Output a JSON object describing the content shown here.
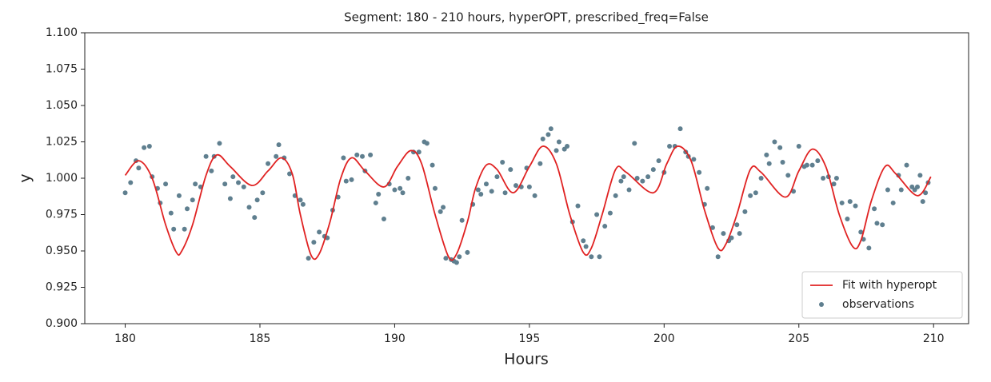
{
  "chart_data": {
    "type": "line",
    "title": "Segment: 180 - 210 hours, hyperOPT, prescribed_freq=False",
    "xlabel": "Hours",
    "ylabel": "y",
    "xlim": [
      178.5,
      211.3
    ],
    "ylim": [
      0.9,
      1.1
    ],
    "xticks": [
      180,
      185,
      190,
      195,
      200,
      205,
      210
    ],
    "yticks": [
      {
        "value": 0.9,
        "label": "0.900"
      },
      0.925,
      {
        "value": 0.95,
        "label": "0.950"
      },
      0.975,
      {
        "value": 1.0,
        "label": "1.000"
      },
      1.025,
      {
        "value": 1.05,
        "label": "1.050"
      },
      1.075,
      {
        "value": 1.1,
        "label": "1.100"
      }
    ],
    "grid": false,
    "legend": "lower right",
    "series": [
      {
        "name": "Fit with hyperopt",
        "type": "line",
        "color": "#e02222",
        "x": [
          180.0,
          180.5,
          181.0,
          181.5,
          181.9,
          182.1,
          182.5,
          183.0,
          183.4,
          183.9,
          184.7,
          185.3,
          185.8,
          186.2,
          186.5,
          186.9,
          187.2,
          187.6,
          188.0,
          188.4,
          188.9,
          189.6,
          190.1,
          190.6,
          191.0,
          191.5,
          192.0,
          192.3,
          192.7,
          193.0,
          193.4,
          193.8,
          194.4,
          195.0,
          195.5,
          196.0,
          196.5,
          197.0,
          197.3,
          197.7,
          198.2,
          198.6,
          199.6,
          200.1,
          200.5,
          201.0,
          201.5,
          202.0,
          202.3,
          202.7,
          203.2,
          203.6,
          204.5,
          205.0,
          205.5,
          206.0,
          206.5,
          207.0,
          207.3,
          207.7,
          208.2,
          208.6,
          209.4,
          209.9
        ],
        "values": [
          1.002,
          1.012,
          1.0,
          0.968,
          0.949,
          0.95,
          0.968,
          1.002,
          1.016,
          1.008,
          0.995,
          1.005,
          1.014,
          1.003,
          0.975,
          0.947,
          0.948,
          0.97,
          1.0,
          1.014,
          1.005,
          0.994,
          1.008,
          1.019,
          1.01,
          0.975,
          0.946,
          0.948,
          0.97,
          0.993,
          1.009,
          1.006,
          0.99,
          1.008,
          1.022,
          1.01,
          0.975,
          0.949,
          0.952,
          0.975,
          1.006,
          1.004,
          0.99,
          1.01,
          1.022,
          1.012,
          0.978,
          0.952,
          0.955,
          0.975,
          1.006,
          1.004,
          0.987,
          1.005,
          1.02,
          1.008,
          0.975,
          0.953,
          0.957,
          0.985,
          1.008,
          1.003,
          0.988,
          1.001
        ]
      },
      {
        "name": "observations",
        "type": "scatter",
        "color": "#5f7f8f",
        "x": [
          180.0,
          180.2,
          180.4,
          180.5,
          180.7,
          180.9,
          181.0,
          181.2,
          181.3,
          181.5,
          181.7,
          181.8,
          182.0,
          182.2,
          182.3,
          182.5,
          182.6,
          182.8,
          183.0,
          183.2,
          183.3,
          183.5,
          183.7,
          183.9,
          184.0,
          184.2,
          184.4,
          184.6,
          184.8,
          184.9,
          185.1,
          185.3,
          185.6,
          185.7,
          185.9,
          186.1,
          186.3,
          186.5,
          186.6,
          186.8,
          187.0,
          187.2,
          187.4,
          187.5,
          187.7,
          187.9,
          188.1,
          188.2,
          188.4,
          188.6,
          188.8,
          188.9,
          189.1,
          189.3,
          189.4,
          189.6,
          189.8,
          190.0,
          190.2,
          190.3,
          190.5,
          190.7,
          190.9,
          191.1,
          191.2,
          191.4,
          191.5,
          191.7,
          191.8,
          191.9,
          192.1,
          192.2,
          192.3,
          192.4,
          192.5,
          192.7,
          192.9,
          193.1,
          193.2,
          193.4,
          193.6,
          193.8,
          194.0,
          194.1,
          194.3,
          194.5,
          194.7,
          194.9,
          195.0,
          195.2,
          195.4,
          195.5,
          195.7,
          195.8,
          196.0,
          196.1,
          196.3,
          196.4,
          196.6,
          196.8,
          197.0,
          197.1,
          197.3,
          197.5,
          197.6,
          197.8,
          198.0,
          198.2,
          198.4,
          198.5,
          198.7,
          198.9,
          199.0,
          199.2,
          199.4,
          199.6,
          199.8,
          200.0,
          200.2,
          200.4,
          200.6,
          200.8,
          200.9,
          201.1,
          201.3,
          201.5,
          201.6,
          201.8,
          202.0,
          202.2,
          202.4,
          202.5,
          202.7,
          202.8,
          203.0,
          203.2,
          203.4,
          203.6,
          203.8,
          203.9,
          204.1,
          204.3,
          204.4,
          204.6,
          204.8,
          205.0,
          205.2,
          205.3,
          205.5,
          205.7,
          205.9,
          206.1,
          206.3,
          206.4,
          206.6,
          206.8,
          206.9,
          207.1,
          207.3,
          207.4,
          207.6,
          207.8,
          207.9,
          208.1,
          208.3,
          208.5,
          208.7,
          208.8,
          209.0,
          209.2,
          209.3,
          209.4,
          209.5,
          209.6,
          209.7,
          209.8
        ],
        "values": [
          0.99,
          0.997,
          1.012,
          1.007,
          1.021,
          1.022,
          1.001,
          0.993,
          0.983,
          0.996,
          0.976,
          0.965,
          0.988,
          0.965,
          0.979,
          0.985,
          0.996,
          0.994,
          1.015,
          1.005,
          1.015,
          1.024,
          0.996,
          0.986,
          1.001,
          0.997,
          0.994,
          0.98,
          0.973,
          0.985,
          0.99,
          1.01,
          1.015,
          1.023,
          1.014,
          1.003,
          0.988,
          0.985,
          0.982,
          0.945,
          0.956,
          0.963,
          0.96,
          0.959,
          0.978,
          0.987,
          1.014,
          0.998,
          0.999,
          1.016,
          1.015,
          1.005,
          1.016,
          0.983,
          0.989,
          0.972,
          0.996,
          0.992,
          0.993,
          0.99,
          1.0,
          1.018,
          1.018,
          1.025,
          1.024,
          1.009,
          0.993,
          0.977,
          0.98,
          0.945,
          0.944,
          0.943,
          0.942,
          0.946,
          0.971,
          0.949,
          0.982,
          0.992,
          0.989,
          0.996,
          0.991,
          1.001,
          1.011,
          0.99,
          1.006,
          0.995,
          0.994,
          1.007,
          0.994,
          0.988,
          1.01,
          1.027,
          1.03,
          1.034,
          1.019,
          1.025,
          1.02,
          1.022,
          0.97,
          0.981,
          0.957,
          0.953,
          0.946,
          0.975,
          0.946,
          0.967,
          0.976,
          0.988,
          0.998,
          1.001,
          0.992,
          1.024,
          1.0,
          0.998,
          1.001,
          1.006,
          1.012,
          1.004,
          1.022,
          1.022,
          1.034,
          1.018,
          1.015,
          1.013,
          1.004,
          0.982,
          0.993,
          0.966,
          0.946,
          0.962,
          0.957,
          0.959,
          0.968,
          0.962,
          0.977,
          0.988,
          0.99,
          1.0,
          1.016,
          1.01,
          1.025,
          1.021,
          1.011,
          1.002,
          0.991,
          1.022,
          1.008,
          1.009,
          1.009,
          1.012,
          1.0,
          1.001,
          0.996,
          1.0,
          0.983,
          0.972,
          0.984,
          0.981,
          0.963,
          0.958,
          0.952,
          0.979,
          0.969,
          0.968,
          0.992,
          0.983,
          1.002,
          0.992,
          1.009,
          0.994,
          0.992,
          0.994,
          1.002,
          0.984,
          0.99,
          0.997
        ]
      }
    ]
  }
}
